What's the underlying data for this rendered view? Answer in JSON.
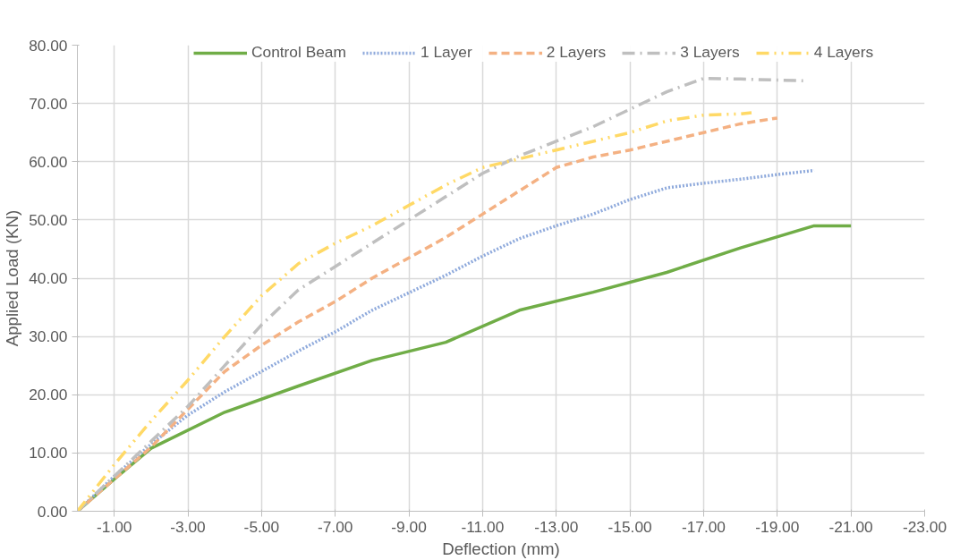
{
  "chart_data": {
    "type": "line",
    "xlabel": "Deflection (mm)",
    "ylabel": "Applied Load (KN)",
    "xlim": [
      0,
      -23
    ],
    "ylim": [
      0,
      80
    ],
    "xticks": [
      {
        "value": -1,
        "label": "-1.00"
      },
      {
        "value": -3,
        "label": "-3.00"
      },
      {
        "value": -5,
        "label": "-5.00"
      },
      {
        "value": -7,
        "label": "-7.00"
      },
      {
        "value": -9,
        "label": "-9.00"
      },
      {
        "value": -11,
        "label": "-11.00"
      },
      {
        "value": -13,
        "label": "-13.00"
      },
      {
        "value": -15,
        "label": "-15.00"
      },
      {
        "value": -17,
        "label": "-17.00"
      },
      {
        "value": -19,
        "label": "-19.00"
      },
      {
        "value": -21,
        "label": "-21.00"
      },
      {
        "value": -23,
        "label": "-23.00"
      }
    ],
    "yticks": [
      {
        "value": 0,
        "label": "0.00"
      },
      {
        "value": 10,
        "label": "10.00"
      },
      {
        "value": 20,
        "label": "20.00"
      },
      {
        "value": 30,
        "label": "30.00"
      },
      {
        "value": 40,
        "label": "40.00"
      },
      {
        "value": 50,
        "label": "50.00"
      },
      {
        "value": 60,
        "label": "60.00"
      },
      {
        "value": 70,
        "label": "70.00"
      },
      {
        "value": 80,
        "label": "80.00"
      }
    ],
    "grid": true,
    "legend": "top",
    "marker": "none",
    "series": [
      {
        "name": "Control Beam",
        "color": "#70ad47",
        "line_style": "solid",
        "x": [
          0,
          -1,
          -2,
          -4,
          -6,
          -8,
          -10,
          -12,
          -14,
          -16,
          -18,
          -20,
          -21
        ],
        "values": [
          0,
          5.5,
          10.8,
          17,
          21.5,
          25.9,
          29,
          34.5,
          37.6,
          41,
          45.2,
          49,
          49
        ]
      },
      {
        "name": "1 Layer",
        "color": "#8faadc",
        "line_style": "dotted",
        "x": [
          0,
          -1,
          -2,
          -3,
          -4,
          -5,
          -6,
          -7,
          -8,
          -9,
          -10,
          -11,
          -12,
          -13,
          -14,
          -15,
          -16,
          -17,
          -18,
          -19,
          -20
        ],
        "values": [
          0,
          6,
          11.5,
          16.5,
          20.5,
          24,
          27.5,
          30.8,
          34.5,
          37.5,
          40.5,
          43.8,
          46.8,
          49,
          51,
          53.5,
          55.5,
          56.3,
          57,
          57.8,
          58.5
        ]
      },
      {
        "name": "2 Layers",
        "color": "#f4b183",
        "line_style": "dashed",
        "x": [
          0,
          -1,
          -2,
          -3,
          -4,
          -5,
          -6,
          -7,
          -8,
          -9,
          -10,
          -11,
          -12,
          -13,
          -14,
          -15,
          -16,
          -17,
          -18,
          -19
        ],
        "values": [
          0,
          5.5,
          11,
          17.5,
          24,
          28.5,
          32.5,
          36,
          40,
          43.5,
          47,
          51,
          55,
          59,
          60.8,
          62,
          63.5,
          65,
          66.5,
          67.5
        ]
      },
      {
        "name": "3 Layers",
        "color": "#bfbfbf",
        "line_style": "dashdot",
        "x": [
          0,
          -1,
          -2,
          -3,
          -4,
          -5,
          -6,
          -7,
          -8,
          -9,
          -10,
          -11,
          -12,
          -13,
          -14,
          -15,
          -16,
          -17,
          -18,
          -19,
          -19.7
        ],
        "values": [
          0,
          6,
          12,
          18,
          25,
          32,
          38,
          42,
          46,
          50,
          54,
          58,
          61,
          63.5,
          66,
          69,
          72,
          74.3,
          74.2,
          74,
          73.9
        ]
      },
      {
        "name": "4 Layers",
        "color": "#ffd966",
        "line_style": "dashdotdot",
        "x": [
          0,
          -1,
          -2,
          -3,
          -4,
          -5,
          -6,
          -7,
          -8,
          -9,
          -10,
          -11,
          -12,
          -13,
          -14,
          -15,
          -16,
          -17,
          -18,
          -18.3
        ],
        "values": [
          0,
          8,
          15.5,
          22.5,
          30,
          37,
          42.5,
          46,
          49,
          52.5,
          56,
          59,
          60.5,
          62,
          63.5,
          65,
          67,
          68,
          68.2,
          68.4
        ]
      }
    ]
  }
}
